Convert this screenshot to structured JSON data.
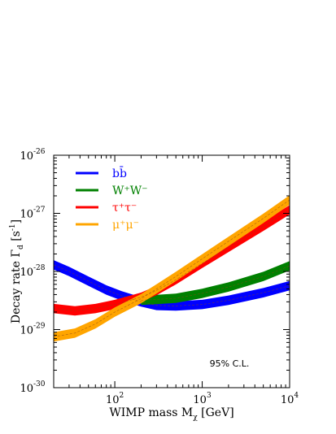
{
  "chart_data": {
    "type": "line",
    "xscale": "log",
    "yscale": "log",
    "xlim": [
      20,
      10000
    ],
    "ylim": [
      1e-30,
      1e-26
    ],
    "x_ticks": [
      {
        "value": 100,
        "base": "10",
        "exp": "2"
      },
      {
        "value": 1000,
        "base": "10",
        "exp": "3"
      },
      {
        "value": 10000,
        "base": "10",
        "exp": "4"
      }
    ],
    "y_ticks": [
      {
        "value": 1e-30,
        "base": "10",
        "exp": "-30"
      },
      {
        "value": 1e-29,
        "base": "10",
        "exp": "-29"
      },
      {
        "value": 1e-28,
        "base": "10",
        "exp": "-28"
      },
      {
        "value": 1e-27,
        "base": "10",
        "exp": "-27"
      },
      {
        "value": 1e-26,
        "base": "10",
        "exp": "-26"
      }
    ],
    "xlabel": {
      "main": "WIMP mass M",
      "sub": "χ",
      "unit": " [GeV]"
    },
    "ylabel": {
      "main": "Decay rate  Γ",
      "sub": "d",
      "unit_open": "  [s",
      "unit_exp": "-1",
      "unit_close": "]"
    },
    "annotation": "95% C.L.",
    "legend_position": "top-left",
    "series": [
      {
        "name": "bb̄",
        "color": "#0000ff",
        "points": [
          [
            20,
            1.3e-28
          ],
          [
            30,
            1e-28
          ],
          [
            50,
            6.8e-29
          ],
          [
            80,
            4.8e-29
          ],
          [
            120,
            3.8e-29
          ],
          [
            200,
            3e-29
          ],
          [
            300,
            2.6e-29
          ],
          [
            500,
            2.55e-29
          ],
          [
            1000,
            2.7e-29
          ],
          [
            2000,
            3.2e-29
          ],
          [
            5000,
            4.3e-29
          ],
          [
            10000,
            5.7e-29
          ]
        ],
        "band_factor": 1.45
      },
      {
        "name": "W⁺W⁻",
        "color": "#008000",
        "points": [
          [
            200,
            3.2e-29
          ],
          [
            300,
            3.3e-29
          ],
          [
            500,
            3.45e-29
          ],
          [
            1000,
            4.2e-29
          ],
          [
            2000,
            5.4e-29
          ],
          [
            5000,
            8.2e-29
          ],
          [
            10000,
            1.25e-28
          ]
        ],
        "band_factor": 1.45
      },
      {
        "name": "τ⁺τ⁻",
        "color": "#ff0000",
        "points": [
          [
            20,
            2.3e-29
          ],
          [
            35,
            2.1e-29
          ],
          [
            60,
            2.3e-29
          ],
          [
            100,
            2.7e-29
          ],
          [
            200,
            3.6e-29
          ],
          [
            300,
            4.7e-29
          ],
          [
            500,
            7.2e-29
          ],
          [
            1000,
            1.38e-28
          ],
          [
            2000,
            2.6e-28
          ],
          [
            5000,
            6e-28
          ],
          [
            10000,
            1.15e-27
          ]
        ],
        "band_factor": 1.45
      },
      {
        "name": "μ⁺μ⁻",
        "color": "#ffa500",
        "points": [
          [
            20,
            7.5e-30
          ],
          [
            35,
            8.7e-30
          ],
          [
            60,
            1.25e-29
          ],
          [
            100,
            2e-29
          ],
          [
            200,
            3.4e-29
          ],
          [
            300,
            5e-29
          ],
          [
            500,
            8.2e-29
          ],
          [
            1000,
            1.65e-28
          ],
          [
            2000,
            3.3e-28
          ],
          [
            5000,
            8.2e-28
          ],
          [
            10000,
            1.7e-27
          ]
        ],
        "band_factor": 1.45
      }
    ]
  }
}
